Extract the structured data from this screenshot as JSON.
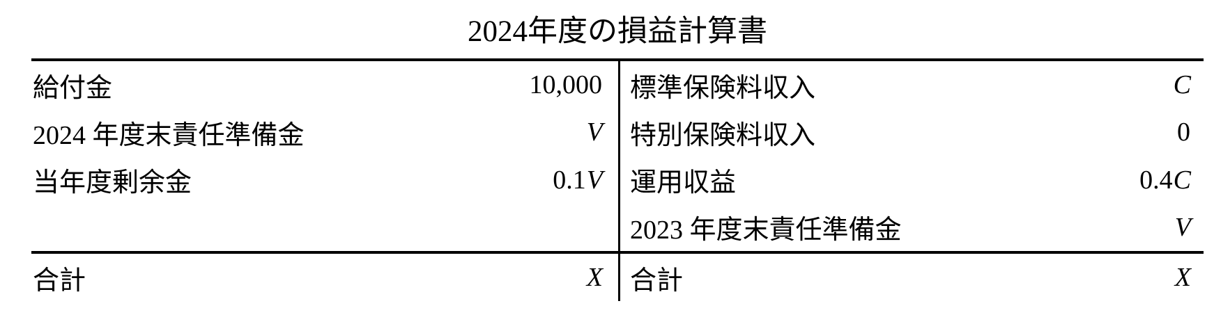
{
  "title": "2024年度の損益計算書",
  "colors": {
    "text": "#000000",
    "background": "#ffffff",
    "rule": "#000000"
  },
  "table": {
    "left": {
      "rows": [
        {
          "label": "給付金",
          "value_plain": "10,000",
          "value_var": ""
        },
        {
          "label": "2024 年度末責任準備金",
          "value_plain": "",
          "value_var": "V"
        },
        {
          "label": "当年度剰余金",
          "value_plain": "0.1",
          "value_var": "V"
        },
        {
          "label": "",
          "value_plain": "",
          "value_var": ""
        }
      ],
      "total": {
        "label": "合計",
        "value_plain": "",
        "value_var": "X"
      }
    },
    "right": {
      "rows": [
        {
          "label": "標準保険料収入",
          "value_plain": "",
          "value_var": "C"
        },
        {
          "label": "特別保険料収入",
          "value_plain": "0",
          "value_var": ""
        },
        {
          "label": "運用収益",
          "value_plain": "0.4",
          "value_var": "C"
        },
        {
          "label": "2023 年度末責任準備金",
          "value_plain": "",
          "value_var": "V"
        }
      ],
      "total": {
        "label": "合計",
        "value_plain": "",
        "value_var": "X"
      }
    }
  }
}
